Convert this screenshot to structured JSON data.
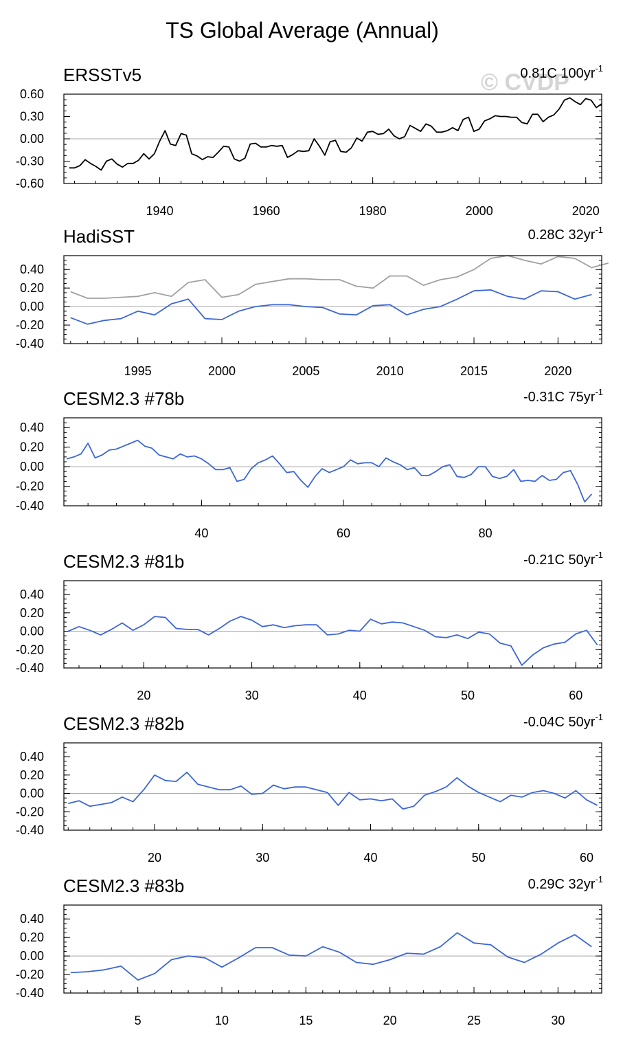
{
  "figure": {
    "title": "TS Global Average (Annual)",
    "watermark": "© CVDP",
    "colors": {
      "obs_black": "#000000",
      "model_blue": "#3b66d9",
      "obs_grey": "#a0a0a0",
      "zero_line": "#a8a8a8"
    }
  },
  "chart_data": [
    {
      "type": "line",
      "title": "ERSSTv5",
      "trend": {
        "value": "0.81C",
        "period": "100yr",
        "sup": "-1"
      },
      "xlim": [
        1922,
        2023
      ],
      "ylim": [
        -0.6,
        0.6
      ],
      "yticks": [
        -0.6,
        -0.3,
        0.0,
        0.3,
        0.6
      ],
      "ytick_labels": [
        "-0.60",
        "-0.30",
        "0.00",
        "0.30",
        "0.60"
      ],
      "xticks": [
        1940,
        1960,
        1980,
        2000,
        2020
      ],
      "xtick_labels": [
        "1940",
        "1960",
        "1980",
        "2000",
        "2020"
      ],
      "series": [
        {
          "name": "ERSSTv5",
          "color": "#000000",
          "x0": 1923,
          "values": [
            -0.39,
            -0.39,
            -0.36,
            -0.28,
            -0.33,
            -0.37,
            -0.42,
            -0.3,
            -0.27,
            -0.34,
            -0.38,
            -0.33,
            -0.33,
            -0.29,
            -0.2,
            -0.27,
            -0.2,
            -0.03,
            0.11,
            -0.07,
            -0.09,
            0.07,
            0.05,
            -0.2,
            -0.23,
            -0.28,
            -0.24,
            -0.25,
            -0.18,
            -0.1,
            -0.11,
            -0.27,
            -0.3,
            -0.26,
            -0.07,
            -0.06,
            -0.11,
            -0.11,
            -0.09,
            -0.1,
            -0.09,
            -0.25,
            -0.21,
            -0.16,
            -0.17,
            -0.16,
            0.0,
            -0.1,
            -0.22,
            -0.04,
            -0.02,
            -0.17,
            -0.18,
            -0.12,
            0.01,
            -0.03,
            0.09,
            0.1,
            0.06,
            0.07,
            0.13,
            0.04,
            0.0,
            0.03,
            0.18,
            0.14,
            0.1,
            0.2,
            0.17,
            0.09,
            0.09,
            0.11,
            0.15,
            0.11,
            0.26,
            0.29,
            0.1,
            0.13,
            0.24,
            0.27,
            0.31,
            0.3,
            0.3,
            0.29,
            0.29,
            0.22,
            0.2,
            0.33,
            0.33,
            0.23,
            0.29,
            0.32,
            0.4,
            0.52,
            0.55,
            0.5,
            0.46,
            0.54,
            0.52,
            0.42,
            0.47
          ]
        }
      ]
    },
    {
      "type": "line",
      "title": "HadiSST",
      "trend": {
        "value": "0.28C",
        "period": "32yr",
        "sup": "-1"
      },
      "xlim": [
        1990.6,
        2022.6
      ],
      "ylim": [
        -0.4,
        0.55
      ],
      "yticks": [
        -0.4,
        -0.2,
        0.0,
        0.2,
        0.4
      ],
      "ytick_labels": [
        "-0.40",
        "-0.20",
        "0.00",
        "0.20",
        "0.40"
      ],
      "xticks": [
        1995,
        2000,
        2005,
        2010,
        2015,
        2020
      ],
      "xtick_labels": [
        "1995",
        "2000",
        "2005",
        "2010",
        "2015",
        "2020"
      ],
      "series": [
        {
          "name": "ERSSTv5 reference",
          "color": "#a0a0a0",
          "x0": 1991,
          "values": [
            0.16,
            0.09,
            0.09,
            0.1,
            0.11,
            0.15,
            0.11,
            0.26,
            0.29,
            0.1,
            0.13,
            0.24,
            0.27,
            0.3,
            0.3,
            0.29,
            0.29,
            0.22,
            0.2,
            0.33,
            0.33,
            0.23,
            0.29,
            0.32,
            0.4,
            0.52,
            0.55,
            0.5,
            0.46,
            0.54,
            0.52,
            0.42,
            0.47
          ]
        },
        {
          "name": "HadiSST",
          "color": "#3b66d9",
          "x0": 1991,
          "values": [
            -0.12,
            -0.19,
            -0.15,
            -0.13,
            -0.05,
            -0.09,
            0.03,
            0.08,
            -0.13,
            -0.14,
            -0.05,
            0.0,
            0.02,
            0.02,
            0.0,
            -0.01,
            -0.08,
            -0.09,
            0.01,
            0.02,
            -0.09,
            -0.03,
            0.0,
            0.08,
            0.17,
            0.18,
            0.11,
            0.08,
            0.17,
            0.16,
            0.08,
            0.13
          ]
        }
      ]
    },
    {
      "type": "line",
      "title": "CESM2.3 #78b",
      "trend": {
        "value": "-0.31C",
        "period": "75yr",
        "sup": "-1"
      },
      "xlim": [
        20.6,
        96.4
      ],
      "ylim": [
        -0.4,
        0.5
      ],
      "yticks": [
        -0.4,
        -0.2,
        0.0,
        0.2,
        0.4
      ],
      "ytick_labels": [
        "-0.40",
        "-0.20",
        "0.00",
        "0.20",
        "0.40"
      ],
      "xticks": [
        40,
        60,
        80
      ],
      "xtick_labels": [
        "40",
        "60",
        "80"
      ],
      "series": [
        {
          "name": "CESM2.3 #78b",
          "color": "#3b66d9",
          "x0": 21,
          "values": [
            0.08,
            0.1,
            0.13,
            0.24,
            0.09,
            0.12,
            0.17,
            0.18,
            0.21,
            0.24,
            0.27,
            0.21,
            0.19,
            0.12,
            0.1,
            0.08,
            0.13,
            0.1,
            0.11,
            0.08,
            0.03,
            -0.03,
            -0.03,
            -0.01,
            -0.15,
            -0.13,
            -0.02,
            0.04,
            0.07,
            0.11,
            0.03,
            -0.06,
            -0.05,
            -0.14,
            -0.21,
            -0.1,
            -0.02,
            -0.06,
            -0.03,
            0.0,
            0.07,
            0.03,
            0.04,
            0.04,
            0.0,
            0.09,
            0.05,
            0.02,
            -0.03,
            -0.01,
            -0.09,
            -0.09,
            -0.05,
            0.0,
            0.02,
            -0.1,
            -0.11,
            -0.08,
            0.0,
            0.0,
            -0.1,
            -0.12,
            -0.1,
            -0.03,
            -0.15,
            -0.14,
            -0.15,
            -0.09,
            -0.14,
            -0.13,
            -0.06,
            -0.04,
            -0.18,
            -0.36,
            -0.28
          ]
        }
      ]
    },
    {
      "type": "line",
      "title": "CESM2.3 #81b",
      "trend": {
        "value": "-0.21C",
        "period": "50yr",
        "sup": "-1"
      },
      "xlim": [
        12.6,
        62.4
      ],
      "ylim": [
        -0.4,
        0.55
      ],
      "yticks": [
        -0.4,
        -0.2,
        0.0,
        0.2,
        0.4
      ],
      "ytick_labels": [
        "-0.40",
        "-0.20",
        "0.00",
        "0.20",
        "0.40"
      ],
      "xticks": [
        20,
        30,
        40,
        50,
        60
      ],
      "xtick_labels": [
        "20",
        "30",
        "40",
        "50",
        "60"
      ],
      "series": [
        {
          "name": "CESM2.3 #81b",
          "color": "#3b66d9",
          "x0": 13,
          "values": [
            0.0,
            0.05,
            0.01,
            -0.04,
            0.02,
            0.09,
            0.01,
            0.07,
            0.16,
            0.15,
            0.03,
            0.02,
            0.02,
            -0.04,
            0.03,
            0.11,
            0.16,
            0.12,
            0.05,
            0.07,
            0.04,
            0.06,
            0.07,
            0.07,
            -0.04,
            -0.03,
            0.01,
            0.0,
            0.13,
            0.08,
            0.1,
            0.09,
            0.05,
            0.01,
            -0.06,
            -0.07,
            -0.04,
            -0.08,
            -0.01,
            -0.03,
            -0.13,
            -0.16,
            -0.37,
            -0.26,
            -0.18,
            -0.14,
            -0.12,
            -0.03,
            0.01,
            -0.15
          ]
        }
      ]
    },
    {
      "type": "line",
      "title": "CESM2.3 #82b",
      "trend": {
        "value": "-0.04C",
        "period": "50yr",
        "sup": "-1"
      },
      "xlim": [
        11.6,
        61.4
      ],
      "ylim": [
        -0.4,
        0.55
      ],
      "yticks": [
        -0.4,
        -0.2,
        0.0,
        0.2,
        0.4
      ],
      "ytick_labels": [
        "-0.40",
        "-0.20",
        "0.00",
        "0.20",
        "0.40"
      ],
      "xticks": [
        20,
        30,
        40,
        50,
        60
      ],
      "xtick_labels": [
        "20",
        "30",
        "40",
        "50",
        "60"
      ],
      "series": [
        {
          "name": "CESM2.3 #82b",
          "color": "#3b66d9",
          "x0": 12,
          "values": [
            -0.11,
            -0.08,
            -0.14,
            -0.12,
            -0.1,
            -0.04,
            -0.09,
            0.04,
            0.2,
            0.14,
            0.13,
            0.23,
            0.1,
            0.07,
            0.04,
            0.04,
            0.08,
            -0.01,
            0.0,
            0.09,
            0.05,
            0.07,
            0.07,
            0.04,
            0.01,
            -0.13,
            0.01,
            -0.07,
            -0.06,
            -0.08,
            -0.06,
            -0.17,
            -0.14,
            -0.02,
            0.02,
            0.07,
            0.17,
            0.08,
            0.01,
            -0.04,
            -0.09,
            -0.02,
            -0.04,
            0.01,
            0.03,
            0.0,
            -0.05,
            0.03,
            -0.07,
            -0.13
          ]
        }
      ]
    },
    {
      "type": "line",
      "title": "CESM2.3 #83b",
      "trend": {
        "value": "0.29C",
        "period": "32yr",
        "sup": "-1"
      },
      "xlim": [
        0.6,
        32.6
      ],
      "ylim": [
        -0.4,
        0.55
      ],
      "yticks": [
        -0.4,
        -0.2,
        0.0,
        0.2,
        0.4
      ],
      "ytick_labels": [
        "-0.40",
        "-0.20",
        "0.00",
        "0.20",
        "0.40"
      ],
      "xticks": [
        5,
        10,
        15,
        20,
        25,
        30
      ],
      "xtick_labels": [
        "5",
        "10",
        "15",
        "20",
        "25",
        "30"
      ],
      "series": [
        {
          "name": "CESM2.3 #83b",
          "color": "#3b66d9",
          "x0": 1,
          "values": [
            -0.18,
            -0.17,
            -0.15,
            -0.11,
            -0.26,
            -0.19,
            -0.04,
            0.0,
            -0.02,
            -0.12,
            -0.02,
            0.09,
            0.09,
            0.01,
            0.0,
            0.1,
            0.04,
            -0.07,
            -0.09,
            -0.04,
            0.03,
            0.02,
            0.1,
            0.25,
            0.14,
            0.12,
            -0.01,
            -0.07,
            0.02,
            0.14,
            0.23,
            0.1
          ]
        }
      ]
    }
  ]
}
